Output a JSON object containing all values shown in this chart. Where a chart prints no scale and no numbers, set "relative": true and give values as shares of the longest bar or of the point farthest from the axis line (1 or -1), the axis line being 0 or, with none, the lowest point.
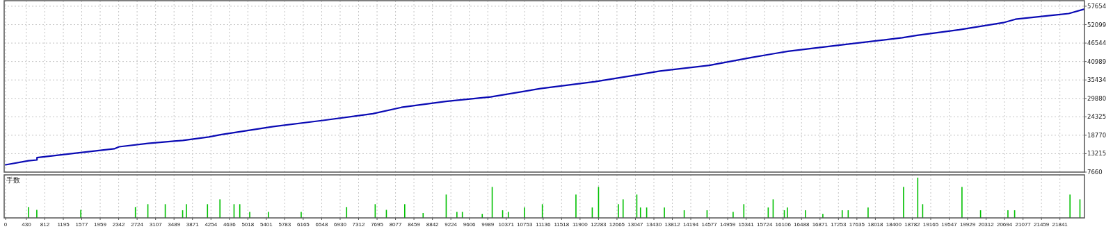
{
  "chart_data": [
    {
      "type": "line",
      "color": "#0a0ab4",
      "grid": true,
      "tick_labels": "y",
      "xlim": [
        -30,
        22350
      ],
      "ylim": [
        7660,
        59320
      ],
      "xticks": [
        0,
        430,
        812,
        1195,
        1577,
        1959,
        2342,
        2724,
        3107,
        3489,
        3871,
        4254,
        4636,
        5018,
        5401,
        5783,
        6165,
        6548,
        6930,
        7312,
        7695,
        8077,
        8459,
        8842,
        9224,
        9606,
        9989,
        10371,
        10753,
        11136,
        11518,
        11900,
        12283,
        12665,
        13047,
        13430,
        13812,
        14194,
        14577,
        14959,
        15341,
        15724,
        16106,
        16488,
        16871,
        17253,
        17635,
        18018,
        18400,
        18782,
        19165,
        19547,
        19929,
        20312,
        20694,
        21077,
        21459,
        21841
      ],
      "yticks": [
        7660,
        13215,
        18770,
        24325,
        29880,
        35434,
        40989,
        46544,
        52099,
        57654
      ],
      "x": [
        0,
        475,
        650,
        650,
        1427,
        2250,
        2350,
        2950,
        3670,
        4210,
        4450,
        5545,
        6575,
        7605,
        8200,
        9120,
        10050,
        11080,
        12215,
        13040,
        13555,
        14580,
        15450,
        15900,
        16210,
        17445,
        18575,
        18885,
        19755,
        20690,
        20920,
        22025,
        22335
      ],
      "values": [
        9850,
        11100,
        11330,
        12040,
        13350,
        14680,
        15290,
        16300,
        17220,
        18260,
        18930,
        21370,
        23250,
        25240,
        27180,
        28970,
        30310,
        32840,
        34930,
        36850,
        38120,
        39820,
        42220,
        43320,
        44070,
        46220,
        48150,
        48900,
        50550,
        52780,
        53740,
        55450,
        56720
      ]
    },
    {
      "type": "bar",
      "title": "手数",
      "color": "#00c000",
      "grid": "x",
      "tick_labels": "x",
      "relative": true,
      "xlim": [
        -30,
        22350
      ],
      "xticks": [
        0,
        430,
        812,
        1195,
        1577,
        1959,
        2342,
        2724,
        3107,
        3489,
        3871,
        4254,
        4636,
        5018,
        5401,
        5783,
        6165,
        6548,
        6930,
        7312,
        7695,
        8077,
        8459,
        8842,
        9224,
        9606,
        9989,
        10371,
        10753,
        11136,
        11518,
        11900,
        12283,
        12665,
        13047,
        13430,
        13812,
        14194,
        14577,
        14959,
        15341,
        15724,
        16106,
        16488,
        16871,
        17253,
        17635,
        18018,
        18400,
        18782,
        19165,
        19547,
        19929,
        20312,
        20694,
        21077,
        21459,
        21841
      ],
      "x": [
        477,
        646,
        1557,
        2689,
        2947,
        3307,
        3667,
        3745,
        4182,
        4440,
        4732,
        4851,
        5057,
        5443,
        6123,
        7064,
        7656,
        7888,
        8268,
        8649,
        9127,
        9349,
        9462,
        9874,
        10080,
        10296,
        10414,
        10749,
        11119,
        11815,
        12153,
        12283,
        12694,
        12792,
        13076,
        13152,
        13280,
        13647,
        14058,
        14531,
        15071,
        15293,
        15798,
        15900,
        16132,
        16194,
        16570,
        16930,
        17331,
        17455,
        17867,
        18602,
        18896,
        18998,
        19812,
        20197,
        20764,
        20903,
        22050,
        22256
      ],
      "values": [
        0.27,
        0.2,
        0.2,
        0.27,
        0.34,
        0.34,
        0.19,
        0.34,
        0.34,
        0.46,
        0.34,
        0.34,
        0.15,
        0.15,
        0.15,
        0.27,
        0.34,
        0.2,
        0.34,
        0.12,
        0.58,
        0.15,
        0.15,
        0.1,
        0.77,
        0.19,
        0.15,
        0.26,
        0.34,
        0.58,
        0.26,
        0.77,
        0.34,
        0.46,
        0.58,
        0.26,
        0.26,
        0.26,
        0.19,
        0.19,
        0.15,
        0.34,
        0.26,
        0.46,
        0.19,
        0.26,
        0.19,
        0.1,
        0.19,
        0.19,
        0.26,
        0.77,
        1.0,
        0.34,
        0.77,
        0.19,
        0.19,
        0.19,
        0.58,
        0.46
      ]
    }
  ]
}
